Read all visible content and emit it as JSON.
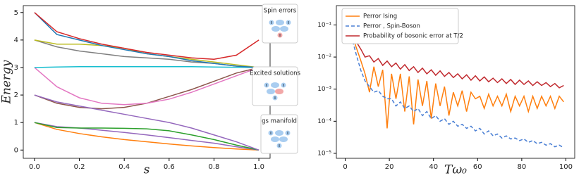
{
  "chart_data": [
    {
      "type": "line",
      "x_label": "s",
      "y_label": "Energy",
      "x": [
        0,
        0.1,
        0.2,
        0.3,
        0.4,
        0.5,
        0.6,
        0.7,
        0.8,
        0.9,
        1.0
      ],
      "xlim": [
        -0.05,
        1.05
      ],
      "ylim": [
        -0.3,
        5.25
      ],
      "xticks": [
        {
          "value": 0,
          "label": "0.0"
        },
        0.2,
        0.4,
        0.6,
        0.8,
        {
          "value": 1,
          "label": "1.0"
        }
      ],
      "yticks": [
        0,
        1,
        2,
        3,
        4,
        5
      ],
      "annotations": [
        "Spin errors",
        "Excited solutions",
        "gs manifold"
      ],
      "series": [
        {
          "color": "#ff7f0e",
          "values": [
            1,
            0.75,
            0.6,
            0.48,
            0.38,
            0.3,
            0.22,
            0.15,
            0.09,
            0.04,
            0
          ]
        },
        {
          "color": "#9467bd",
          "values": [
            1,
            0.85,
            0.8,
            0.72,
            0.64,
            0.55,
            0.45,
            0.35,
            0.25,
            0.12,
            0
          ]
        },
        {
          "color": "#2ca02c",
          "values": [
            1,
            0.82,
            0.8,
            0.8,
            0.79,
            0.77,
            0.7,
            0.55,
            0.38,
            0.18,
            0
          ]
        },
        {
          "color": "#8c564b",
          "values": [
            2,
            1.7,
            1.55,
            1.5,
            1.55,
            1.7,
            1.95,
            2.2,
            2.5,
            2.8,
            3
          ]
        },
        {
          "color": "#9467bd",
          "values": [
            2,
            1.75,
            1.6,
            1.45,
            1.3,
            1.15,
            1.0,
            0.8,
            0.55,
            0.3,
            0
          ]
        },
        {
          "color": "#e377c2",
          "values": [
            3,
            2.3,
            1.9,
            1.7,
            1.65,
            1.7,
            1.85,
            2.1,
            2.4,
            2.7,
            3
          ]
        },
        {
          "color": "#17becf",
          "values": [
            3,
            3.02,
            3.03,
            3.03,
            3.03,
            3.03,
            3.03,
            3.03,
            3.02,
            3.01,
            3
          ]
        },
        {
          "color": "#7f7f7f",
          "values": [
            4,
            3.75,
            3.6,
            3.5,
            3.4,
            3.35,
            3.3,
            3.2,
            3.15,
            3.05,
            3
          ]
        },
        {
          "color": "#bcbd22",
          "values": [
            4,
            3.85,
            3.85,
            3.8,
            3.7,
            3.5,
            3.4,
            3.3,
            3.2,
            3.1,
            3
          ]
        },
        {
          "color": "#1f77b4",
          "values": [
            5,
            4.2,
            4,
            3.8,
            3.65,
            3.5,
            3.4,
            3.25,
            3.15,
            3.05,
            3
          ]
        },
        {
          "color": "#d62728",
          "values": [
            5,
            4.3,
            4.05,
            3.85,
            3.7,
            3.55,
            3.45,
            3.35,
            3.3,
            3.45,
            4
          ]
        }
      ]
    },
    {
      "type": "line",
      "x_label": "Tω₀",
      "log_y": true,
      "legend": "upper left",
      "x": [
        1,
        3,
        5,
        7,
        9,
        11,
        13,
        15,
        17,
        19,
        21,
        23,
        25,
        27,
        29,
        31,
        33,
        35,
        37,
        39,
        41,
        43,
        45,
        47,
        49,
        51,
        53,
        55,
        57,
        59,
        61,
        63,
        65,
        67,
        69,
        71,
        73,
        75,
        77,
        79,
        81,
        83,
        85,
        87,
        89,
        91,
        93,
        95,
        97,
        99
      ],
      "xlim": [
        -4,
        104
      ],
      "ylim": [
        7e-06,
        0.4
      ],
      "xticks": [
        0,
        20,
        40,
        60,
        80,
        100
      ],
      "yticks": [
        {
          "value": 1e-05,
          "label": "10⁻⁵"
        },
        {
          "value": 0.0001,
          "label": "10⁻⁴"
        },
        {
          "value": 0.001,
          "label": "10⁻³"
        },
        {
          "value": 0.01,
          "label": "10⁻²"
        },
        {
          "value": 0.1,
          "label": "10⁻¹"
        }
      ],
      "series": [
        {
          "name": "Perror Ising",
          "color": "#ff7f0e",
          "values": [
            0.2,
            0.05,
            0.02,
            0.008,
            0.003,
            0.0008,
            0.005,
            0.0012,
            0.004,
            6e-05,
            0.003,
            0.0005,
            0.003,
            0.0002,
            0.0025,
            8e-05,
            0.002,
            0.0003,
            0.0018,
            0.00012,
            0.0015,
            0.0003,
            0.0012,
            0.00015,
            0.0008,
            0.0003,
            0.0009,
            0.0002,
            0.0008,
            0.0005,
            0.0006,
            0.00025,
            0.0007,
            0.0003,
            0.0006,
            0.0003,
            0.0007,
            0.0002,
            0.0006,
            0.0003,
            0.0006,
            0.0002,
            0.0006,
            0.00025,
            0.0006,
            0.0003,
            0.0006,
            0.00025,
            0.0006,
            0.0004
          ]
        },
        {
          "name": "Perror , Spin-Boson",
          "color": "#4a7fd4",
          "dash": true,
          "values": [
            0.15,
            0.04,
            0.012,
            0.004,
            0.0018,
            0.0012,
            0.0008,
            0.0009,
            0.0006,
            0.0005,
            0.0005,
            0.0003,
            0.0004,
            0.00025,
            0.0003,
            0.0002,
            0.00025,
            0.00015,
            0.0002,
            0.00012,
            0.00015,
            0.0001,
            0.00012,
            8e-05,
            0.0001,
            7e-05,
            8e-05,
            6e-05,
            7e-05,
            5e-05,
            6e-05,
            4e-05,
            5e-05,
            3.5e-05,
            4e-05,
            3e-05,
            3.5e-05,
            2.8e-05,
            3e-05,
            2.5e-05,
            2.8e-05,
            2.2e-05,
            2.5e-05,
            2e-05,
            2.2e-05,
            1.8e-05,
            2e-05,
            1.6e-05,
            1.8e-05,
            1.5e-05
          ]
        },
        {
          "name": "Probability of bosonic error at T/2",
          "color": "#c0282d",
          "values": [
            0.12,
            0.06,
            0.03,
            0.018,
            0.01,
            0.011,
            0.007,
            0.009,
            0.0055,
            0.0075,
            0.005,
            0.0065,
            0.0042,
            0.0058,
            0.0038,
            0.005,
            0.0033,
            0.0045,
            0.003,
            0.004,
            0.0027,
            0.0037,
            0.0025,
            0.0033,
            0.0023,
            0.003,
            0.0021,
            0.0028,
            0.0019,
            0.0026,
            0.0018,
            0.0024,
            0.0017,
            0.0022,
            0.0016,
            0.0021,
            0.0015,
            0.002,
            0.0014,
            0.0019,
            0.0014,
            0.0018,
            0.0013,
            0.0017,
            0.0013,
            0.0016,
            0.0012,
            0.0015,
            0.0011,
            0.0013
          ]
        }
      ]
    }
  ]
}
